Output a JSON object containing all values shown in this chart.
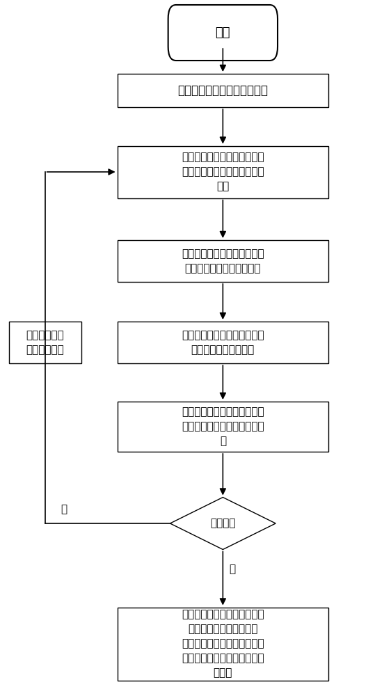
{
  "bg_color": "#ffffff",
  "box_color": "#ffffff",
  "box_edge_color": "#000000",
  "arrow_color": "#000000",
  "text_color": "#000000",
  "font_size": 12,
  "small_font_size": 11,
  "label_yes": "是",
  "label_no": "否",
  "figsize": [
    5.62,
    10.0
  ],
  "dpi": 100,
  "start_text": "开始",
  "box1_text": "采集所有待检测回路输出信号",
  "box2_text": "取投影方向向量，将输出信号\n沿方向向量投影得到一组投影\n信号",
  "box3_text": "求多维信号极值点，并对这些\n极值点做多维基线节点提取",
  "box4_text": "对基线节点运用多维线性变换\n公式得到线性提取结果",
  "box5_text": "整合线性提取结果，得到输出\n信号的均值估计值和分解子信\n号",
  "diamond_text": "是否停止",
  "left_box_text": "将均值估计值\n作为输出信号",
  "end_text": "计算各层分解子信号的零交叉\n点规律性指标，综合这些\n零交叉点规律性指标判定子信\n号的振荡以及工业过程的多回\n路振荡"
}
